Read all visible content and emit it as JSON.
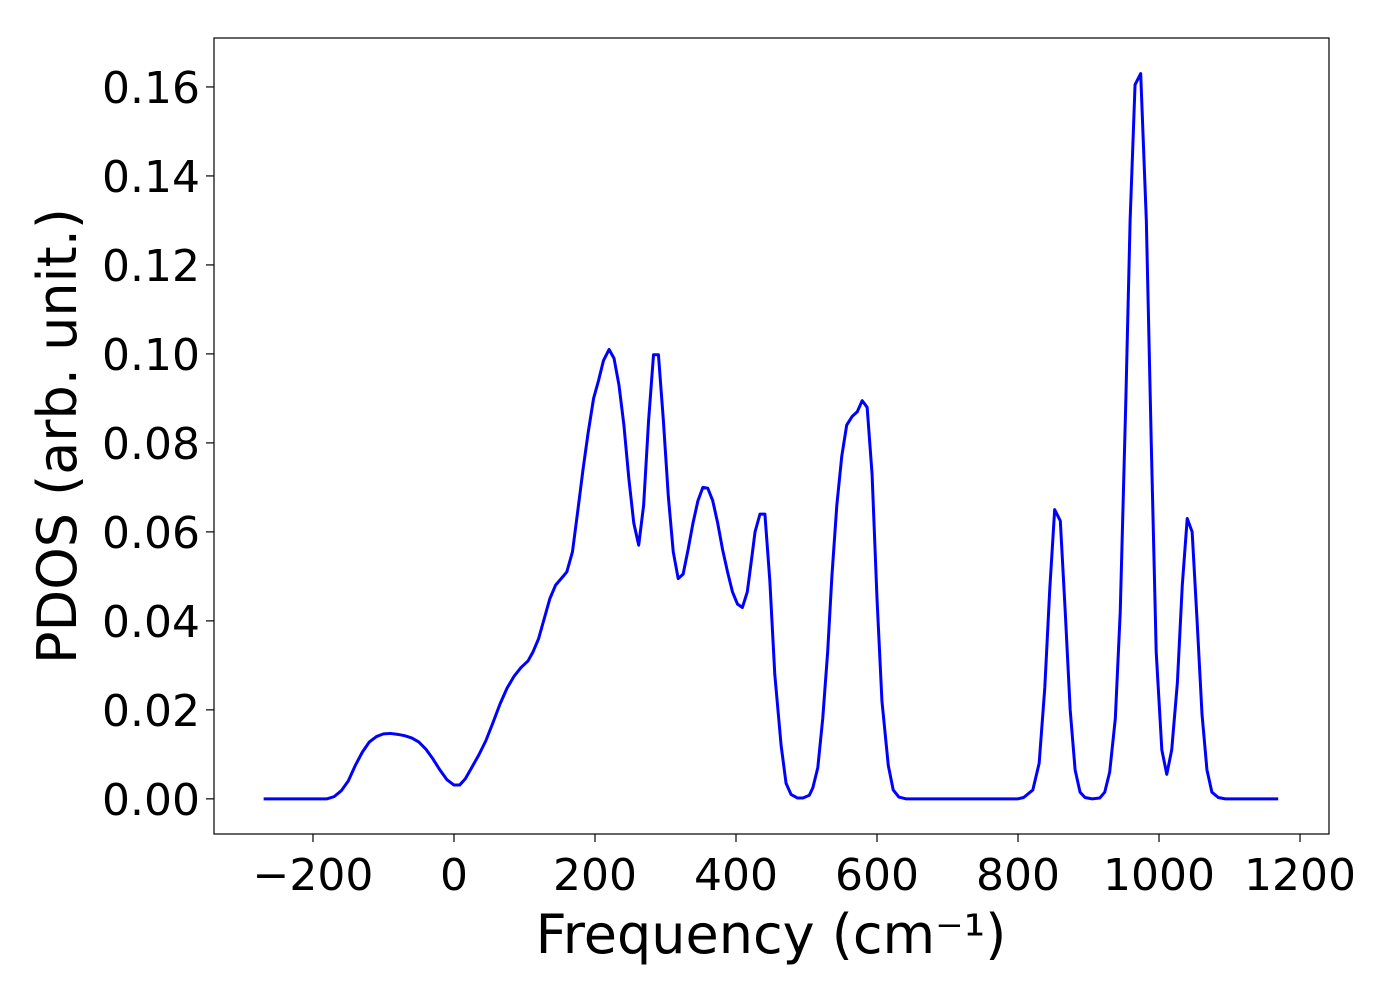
{
  "chart_data": {
    "type": "line",
    "xlabel": "Frequency (cm⁻¹)",
    "ylabel": "PDOS (arb. unit.)",
    "color": "#0000ff",
    "x": [
      -270,
      -180,
      -170,
      -160,
      -150,
      -140,
      -130,
      -120,
      -110,
      -100,
      -90,
      -80,
      -70,
      -60,
      -50,
      -40,
      -30,
      -20,
      -10,
      0,
      8,
      16,
      25,
      35,
      45,
      55,
      65,
      75,
      85,
      95,
      105,
      112,
      120,
      128,
      136,
      144,
      152,
      160,
      168,
      175,
      183,
      190,
      198,
      205,
      212,
      220,
      227,
      234,
      241,
      248,
      255,
      262,
      269,
      276,
      283,
      290,
      297,
      304,
      311,
      318,
      325,
      332,
      339,
      346,
      353,
      360,
      367,
      374,
      381,
      388,
      395,
      402,
      409,
      416,
      423,
      427,
      434,
      441,
      448,
      455,
      464,
      471,
      478,
      487,
      495,
      504,
      509,
      516,
      523,
      530,
      536,
      543,
      550,
      557,
      565,
      572,
      579,
      586,
      593,
      600,
      607,
      616,
      623,
      631,
      641,
      800,
      808,
      821,
      830,
      838,
      845,
      852,
      860,
      867,
      874,
      881,
      888,
      895,
      905,
      916,
      923,
      930,
      938,
      945,
      953,
      959,
      966,
      974,
      982,
      989,
      996,
      1004,
      1011,
      1018,
      1026,
      1033,
      1040,
      1047,
      1054,
      1061,
      1068,
      1075,
      1084,
      1094,
      1169
    ],
    "values": [
      0,
      0,
      0.0005,
      0.0018,
      0.004,
      0.0075,
      0.0105,
      0.0128,
      0.014,
      0.0146,
      0.0147,
      0.0145,
      0.0142,
      0.0137,
      0.0128,
      0.0112,
      0.009,
      0.0065,
      0.0043,
      0.0031,
      0.0031,
      0.0045,
      0.007,
      0.0098,
      0.013,
      0.017,
      0.0212,
      0.0248,
      0.0275,
      0.0295,
      0.031,
      0.033,
      0.036,
      0.0405,
      0.045,
      0.048,
      0.0495,
      0.051,
      0.0555,
      0.064,
      0.074,
      0.082,
      0.09,
      0.094,
      0.0985,
      0.101,
      0.099,
      0.093,
      0.084,
      0.072,
      0.062,
      0.057,
      0.066,
      0.085,
      0.0998,
      0.0998,
      0.085,
      0.068,
      0.0555,
      0.0495,
      0.0505,
      0.056,
      0.062,
      0.067,
      0.07,
      0.0698,
      0.067,
      0.062,
      0.056,
      0.051,
      0.0465,
      0.0438,
      0.043,
      0.0465,
      0.055,
      0.06,
      0.064,
      0.064,
      0.049,
      0.028,
      0.012,
      0.0035,
      0.001,
      0.0002,
      0.0002,
      0.0008,
      0.0025,
      0.007,
      0.018,
      0.033,
      0.05,
      0.066,
      0.077,
      0.084,
      0.086,
      0.087,
      0.0895,
      0.088,
      0.073,
      0.045,
      0.022,
      0.0075,
      0.002,
      0.0004,
      0,
      0,
      0.0003,
      0.002,
      0.008,
      0.025,
      0.047,
      0.065,
      0.0625,
      0.042,
      0.02,
      0.0065,
      0.0015,
      0.0003,
      0,
      0.0002,
      0.0015,
      0.006,
      0.018,
      0.042,
      0.09,
      0.13,
      0.1605,
      0.163,
      0.13,
      0.08,
      0.033,
      0.011,
      0.0055,
      0.011,
      0.026,
      0.048,
      0.063,
      0.06,
      0.04,
      0.019,
      0.0065,
      0.0015,
      0.0003,
      0,
      0
    ],
    "xlim": [
      -340.4,
      1241.1
    ],
    "ylim": [
      -0.0079,
      0.171
    ],
    "xticks": [
      {
        "value": -200,
        "label": "−200"
      },
      0,
      200,
      400,
      600,
      800,
      1000,
      1200
    ],
    "yticks": [
      {
        "value": 0,
        "label": "0.00"
      },
      {
        "value": 0.02,
        "label": "0.02"
      },
      {
        "value": 0.04,
        "label": "0.04"
      },
      {
        "value": 0.06,
        "label": "0.06"
      },
      {
        "value": 0.08,
        "label": "0.08"
      },
      {
        "value": 0.1,
        "label": "0.10"
      },
      {
        "value": 0.12,
        "label": "0.12"
      },
      {
        "value": 0.14,
        "label": "0.14"
      },
      {
        "value": 0.16,
        "label": "0.16"
      }
    ],
    "grid": false
  }
}
